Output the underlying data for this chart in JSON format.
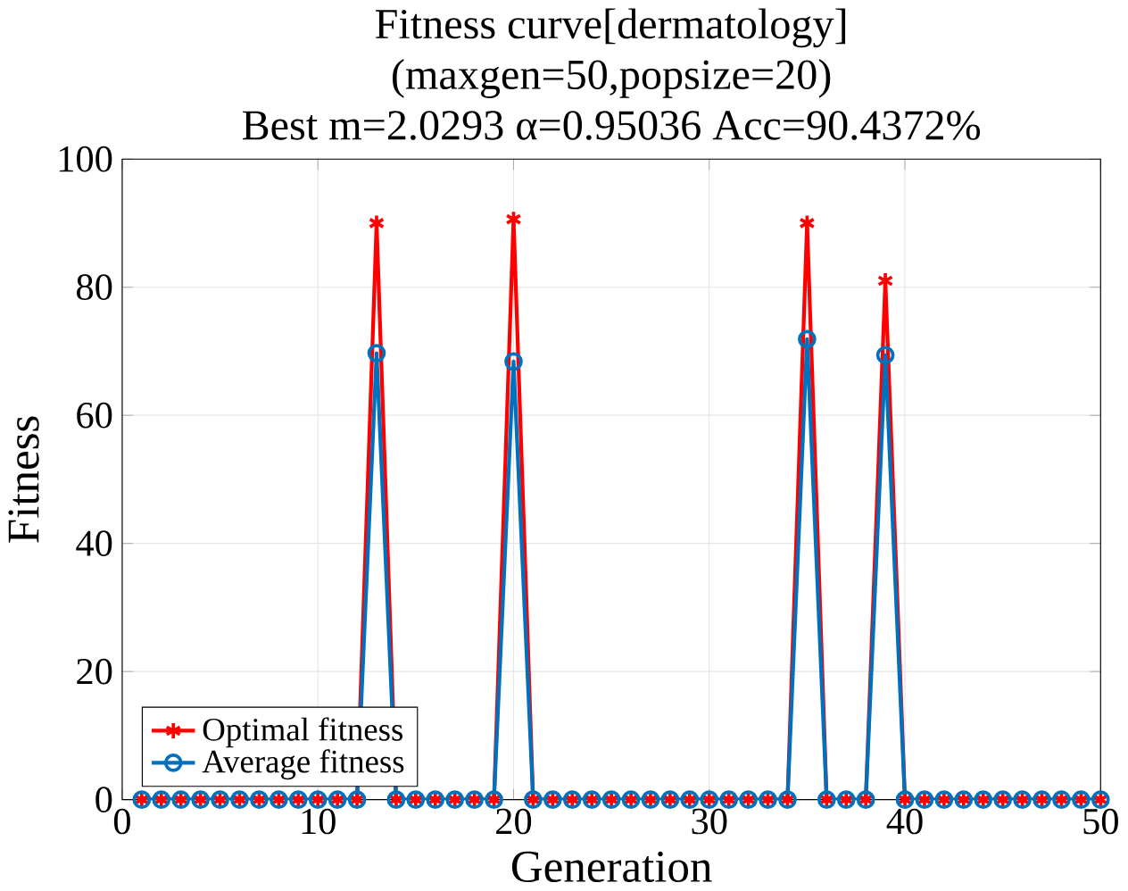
{
  "chart_data": {
    "type": "line",
    "title": "Fitness curve[dermatology]",
    "subtitle": "(maxgen=50,popsize=20)",
    "annotations": [
      "Best m=2.0293 α=0.95036 Acc=90.4372%"
    ],
    "xlabel": "Generation",
    "ylabel": "Fitness",
    "x": [
      1,
      2,
      3,
      4,
      5,
      6,
      7,
      8,
      9,
      10,
      11,
      12,
      13,
      14,
      15,
      16,
      17,
      18,
      19,
      20,
      21,
      22,
      23,
      24,
      25,
      26,
      27,
      28,
      29,
      30,
      31,
      32,
      33,
      34,
      35,
      36,
      37,
      38,
      39,
      40,
      41,
      42,
      43,
      44,
      45,
      46,
      47,
      48,
      49,
      50
    ],
    "series": [
      {
        "name": "Optimal fitness",
        "color": "#ff0000",
        "marker": "cross",
        "values": [
          0,
          0,
          0,
          0,
          0,
          0,
          0,
          0,
          0,
          0,
          0,
          0,
          90,
          0,
          0,
          0,
          0,
          0,
          0,
          90.6,
          0,
          0,
          0,
          0,
          0,
          0,
          0,
          0,
          0,
          0,
          0,
          0,
          0,
          0,
          90,
          0,
          0,
          0,
          81,
          0,
          0,
          0,
          0,
          0,
          0,
          0,
          0,
          0,
          0,
          0
        ]
      },
      {
        "name": "Average fitness",
        "color": "#0072bd",
        "marker": "circle",
        "values": [
          0,
          0,
          0,
          0,
          0,
          0,
          0,
          0,
          0,
          0,
          0,
          0,
          69.7,
          0,
          0,
          0,
          0,
          0,
          0,
          68.4,
          0,
          0,
          0,
          0,
          0,
          0,
          0,
          0,
          0,
          0,
          0,
          0,
          0,
          0,
          71.9,
          0,
          0,
          0,
          69.4,
          0,
          0,
          0,
          0,
          0,
          0,
          0,
          0,
          0,
          0,
          0
        ]
      }
    ],
    "xlim": [
      0,
      50
    ],
    "xticks": [
      0,
      10,
      20,
      30,
      40,
      50
    ],
    "ylim": [
      0,
      100
    ],
    "yticks": [
      0,
      20,
      40,
      60,
      80,
      100
    ],
    "grid": true,
    "legend": "bottom left",
    "line_style": "solid"
  }
}
